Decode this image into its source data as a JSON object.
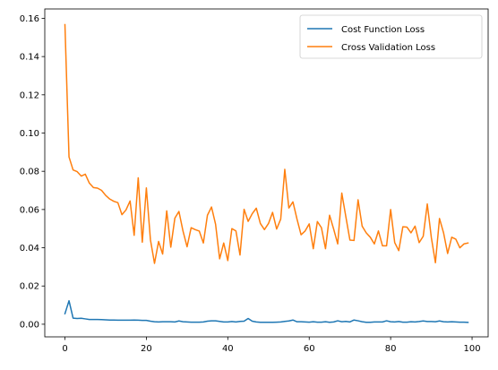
{
  "chart_data": {
    "type": "line",
    "title": "",
    "xlabel": "",
    "ylabel": "",
    "xlim": [
      -4.95,
      103.95
    ],
    "ylim": [
      -0.0066,
      0.1649
    ],
    "xticks": [
      0,
      20,
      40,
      60,
      80,
      100
    ],
    "yticks": [
      0.0,
      0.02,
      0.04,
      0.06,
      0.08,
      0.1,
      0.12,
      0.14,
      0.16
    ],
    "xtick_labels": [
      "0",
      "20",
      "40",
      "60",
      "80",
      "100"
    ],
    "ytick_labels": [
      "0.00",
      "0.02",
      "0.04",
      "0.06",
      "0.08",
      "0.10",
      "0.12",
      "0.14",
      "0.16"
    ],
    "grid": false,
    "legend_position": "top-right",
    "series": [
      {
        "name": "Cost Function Loss",
        "color": "#1f77b4",
        "values": [
          0.0055,
          0.0123,
          0.0032,
          0.003,
          0.0031,
          0.0028,
          0.0025,
          0.0025,
          0.0025,
          0.0024,
          0.0023,
          0.0022,
          0.0022,
          0.0021,
          0.0021,
          0.0021,
          0.0021,
          0.0022,
          0.0021,
          0.002,
          0.002,
          0.0016,
          0.0013,
          0.0012,
          0.0013,
          0.0013,
          0.0013,
          0.0012,
          0.0017,
          0.0013,
          0.0012,
          0.0011,
          0.0011,
          0.0011,
          0.0012,
          0.0016,
          0.0018,
          0.0018,
          0.0015,
          0.0012,
          0.0012,
          0.0014,
          0.0012,
          0.0015,
          0.0016,
          0.003,
          0.0016,
          0.0012,
          0.001,
          0.001,
          0.001,
          0.001,
          0.0011,
          0.0012,
          0.0015,
          0.0017,
          0.0022,
          0.0013,
          0.0013,
          0.0012,
          0.0011,
          0.0013,
          0.0011,
          0.0011,
          0.0013,
          0.001,
          0.0012,
          0.0018,
          0.0013,
          0.0015,
          0.0012,
          0.0022,
          0.0018,
          0.0013,
          0.001,
          0.001,
          0.0012,
          0.0012,
          0.0012,
          0.0018,
          0.0013,
          0.0012,
          0.0014,
          0.0011,
          0.0011,
          0.0013,
          0.0012,
          0.0014,
          0.0017,
          0.0014,
          0.0014,
          0.0013,
          0.0017,
          0.0013,
          0.0012,
          0.0013,
          0.0012,
          0.0011,
          0.0011,
          0.001
        ]
      },
      {
        "name": "Cross Validation Loss",
        "color": "#ff7f0e",
        "values": [
          0.1567,
          0.0875,
          0.0807,
          0.0798,
          0.0775,
          0.0785,
          0.0738,
          0.0715,
          0.0712,
          0.07,
          0.0674,
          0.0655,
          0.0643,
          0.0636,
          0.0573,
          0.0598,
          0.0645,
          0.0465,
          0.0766,
          0.0429,
          0.0713,
          0.0442,
          0.0318,
          0.0433,
          0.0367,
          0.0593,
          0.0403,
          0.0555,
          0.059,
          0.0487,
          0.0405,
          0.0505,
          0.0495,
          0.0487,
          0.0425,
          0.057,
          0.0613,
          0.0523,
          0.0342,
          0.0425,
          0.0333,
          0.05,
          0.0488,
          0.0362,
          0.0601,
          0.0538,
          0.0578,
          0.0607,
          0.0527,
          0.0495,
          0.0527,
          0.0585,
          0.0498,
          0.055,
          0.081,
          0.0608,
          0.064,
          0.055,
          0.0468,
          0.0488,
          0.0525,
          0.0395,
          0.0537,
          0.0505,
          0.0395,
          0.057,
          0.0498,
          0.042,
          0.0686,
          0.0562,
          0.044,
          0.0438,
          0.0651,
          0.0513,
          0.0478,
          0.0455,
          0.042,
          0.0488,
          0.041,
          0.041,
          0.06,
          0.0427,
          0.0385,
          0.051,
          0.0508,
          0.0478,
          0.0513,
          0.0427,
          0.046,
          0.0629,
          0.0453,
          0.0322,
          0.0553,
          0.0478,
          0.037,
          0.0455,
          0.0445,
          0.04,
          0.042,
          0.0425
        ]
      }
    ]
  }
}
